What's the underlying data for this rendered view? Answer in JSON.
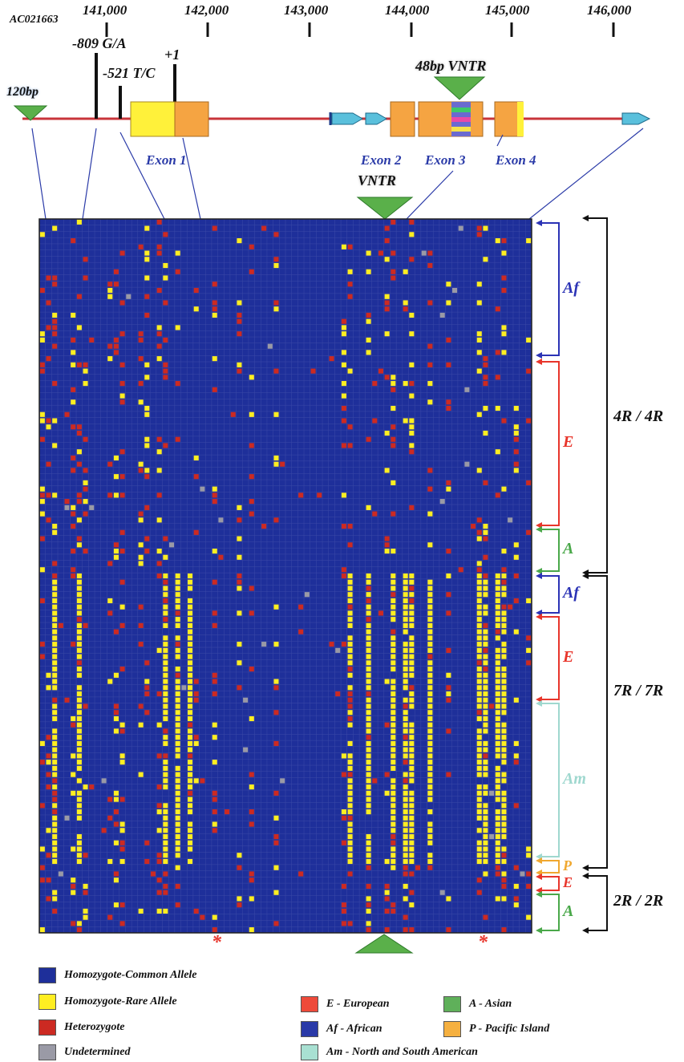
{
  "accession": "AC021663",
  "coords": [
    "141,000",
    "142,000",
    "143,000",
    "144,000",
    "145,000",
    "146,000"
  ],
  "markers": {
    "m120": "120bp",
    "m809": "-809 G/A",
    "m521": "-521 T/C",
    "plus1": "+1",
    "vntr48": "48bp VNTR"
  },
  "exons": [
    "Exon 1",
    "Exon 2",
    "Exon 3",
    "Exon 4"
  ],
  "vntr_label": "VNTR",
  "populations": [
    {
      "label": "Af",
      "color": "#2b33b5"
    },
    {
      "label": "E",
      "color": "#e8352b"
    },
    {
      "label": "A",
      "color": "#4aa84a"
    },
    {
      "label": "Af",
      "color": "#2b33b5"
    },
    {
      "label": "E",
      "color": "#e8352b"
    },
    {
      "label": "Am",
      "color": "#9fd8cf"
    },
    {
      "label": "P",
      "color": "#f0a830"
    },
    {
      "label": "E",
      "color": "#e8352b"
    },
    {
      "label": "A",
      "color": "#4aa84a"
    }
  ],
  "genotypes": [
    "4R / 4R",
    "7R / 7R",
    "2R / 2R"
  ],
  "asterisk": "*",
  "legend_left": [
    {
      "label": "Homozygote-Common Allele",
      "color": "#1e2f9a"
    },
    {
      "label": "Homozygote-Rare Allele",
      "color": "#ffee22"
    },
    {
      "label": "Heterozygote",
      "color": "#cc2a22"
    },
    {
      "label": "Undetermined",
      "color": "#9a9aa6"
    }
  ],
  "legend_right": [
    {
      "label": "E - European",
      "color": "#ee4a3a"
    },
    {
      "label": "A - Asian",
      "color": "#5fb05a"
    },
    {
      "label": "Af - African",
      "color": "#2a3aa8"
    },
    {
      "label": "P - Pacific Island",
      "color": "#f5b040"
    },
    {
      "label": "Am - North and South American",
      "color": "#a8e0d2"
    }
  ]
}
